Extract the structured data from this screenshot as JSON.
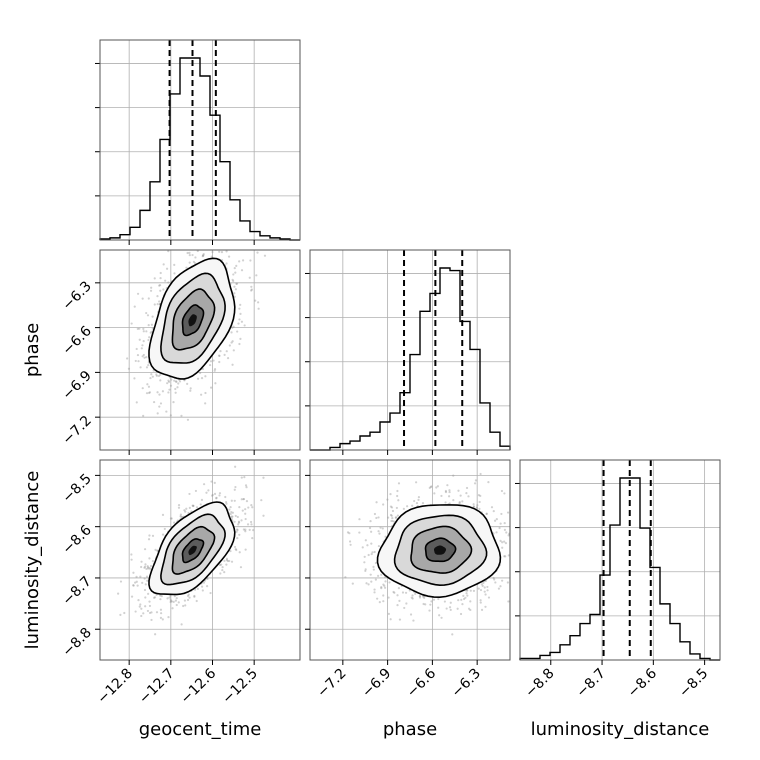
{
  "chart_data": {
    "type": "corner",
    "parameters": [
      "geocent_time",
      "phase",
      "luminosity_distance"
    ],
    "grid": true,
    "colors": {
      "line": "#000000",
      "scatter": "#9a9a9a",
      "grid": "#b0b0b0",
      "frame": "#555555"
    },
    "axes": {
      "geocent_time": {
        "label": "geocent_time",
        "range": [
          -12.87,
          -12.39
        ],
        "ticks": [
          -12.8,
          -12.7,
          -12.6,
          -12.5
        ],
        "tick_labels": [
          "−12.8",
          "−12.7",
          "−12.6",
          "−12.5"
        ],
        "median": -12.648,
        "q_lo": -12.703,
        "q_hi": -12.592,
        "sigma": 0.05
      },
      "phase": {
        "label": "phase",
        "range": [
          -7.42,
          -6.08
        ],
        "ticks": [
          -7.2,
          -6.9,
          -6.6,
          -6.3
        ],
        "tick_labels": [
          "−7.2",
          "−6.9",
          "−6.6",
          "−6.3"
        ],
        "median": -6.58,
        "q_lo": -6.79,
        "q_hi": -6.4,
        "sigma": 0.2
      },
      "luminosity_distance": {
        "label": "luminosity_distance",
        "range": [
          -8.86,
          -8.47
        ],
        "ticks": [
          -8.8,
          -8.7,
          -8.6,
          -8.5
        ],
        "tick_labels": [
          "−8.8",
          "−8.7",
          "−8.6",
          "−8.5"
        ],
        "median": -8.646,
        "q_lo": -8.697,
        "q_hi": -8.605,
        "sigma": 0.045
      }
    },
    "histograms": {
      "geocent_time": {
        "edges": [
          -12.87,
          -12.846,
          -12.822,
          -12.798,
          -12.774,
          -12.75,
          -12.726,
          -12.702,
          -12.678,
          -12.654,
          -12.63,
          -12.606,
          -12.582,
          -12.558,
          -12.534,
          -12.51,
          -12.486,
          -12.462,
          -12.438,
          -12.414,
          -12.39
        ],
        "counts": [
          1,
          2,
          5,
          12,
          28,
          55,
          95,
          138,
          172,
          172,
          155,
          118,
          74,
          38,
          18,
          8,
          4,
          2,
          1,
          0
        ]
      },
      "phase": {
        "edges": [
          -7.42,
          -7.353,
          -7.286,
          -7.219,
          -7.152,
          -7.085,
          -7.018,
          -6.951,
          -6.884,
          -6.817,
          -6.75,
          -6.683,
          -6.616,
          -6.549,
          -6.482,
          -6.415,
          -6.348,
          -6.281,
          -6.214,
          -6.147,
          -6.08
        ],
        "counts": [
          0,
          0,
          2,
          5,
          7,
          11,
          14,
          22,
          29,
          45,
          75,
          109,
          123,
          143,
          141,
          101,
          79,
          37,
          14,
          3
        ]
      },
      "luminosity_distance": {
        "edges": [
          -8.86,
          -8.8405,
          -8.821,
          -8.8015,
          -8.782,
          -8.7625,
          -8.743,
          -8.7235,
          -8.704,
          -8.6845,
          -8.665,
          -8.6455,
          -8.626,
          -8.6065,
          -8.587,
          -8.5675,
          -8.548,
          -8.5285,
          -8.509,
          -8.4895,
          -8.47
        ],
        "counts": [
          1,
          1,
          3,
          5,
          10,
          16,
          24,
          30,
          56,
          89,
          120,
          120,
          87,
          61,
          37,
          24,
          12,
          4,
          1,
          0
        ]
      }
    },
    "pairs": [
      {
        "x": "geocent_time",
        "y": "phase",
        "center": [
          -12.648,
          -6.55
        ],
        "correlation": 0.4
      },
      {
        "x": "geocent_time",
        "y": "luminosity_distance",
        "center": [
          -12.648,
          -8.646
        ],
        "correlation": 0.55
      },
      {
        "x": "phase",
        "y": "luminosity_distance",
        "center": [
          -6.55,
          -8.646
        ],
        "correlation": 0.05
      }
    ],
    "contour_sigma_levels": [
      0.5,
      1.0,
      1.5,
      2.0
    ]
  }
}
